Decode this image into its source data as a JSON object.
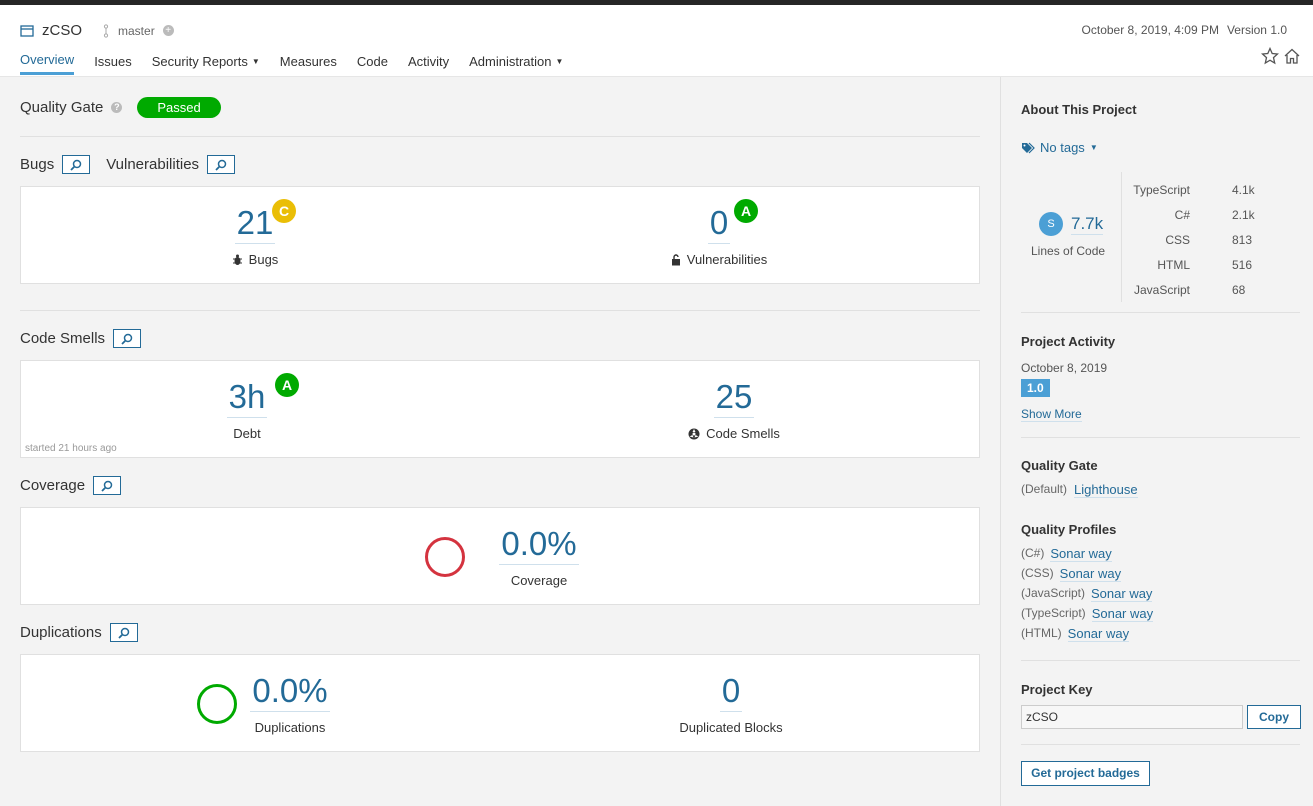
{
  "header": {
    "project_name": "zCSO",
    "branch": "master",
    "date": "October 8, 2019, 4:09 PM",
    "version": "Version 1.0",
    "nav": [
      {
        "label": "Overview"
      },
      {
        "label": "Issues"
      },
      {
        "label": "Security Reports"
      },
      {
        "label": "Measures"
      },
      {
        "label": "Code"
      },
      {
        "label": "Activity"
      },
      {
        "label": "Administration"
      }
    ]
  },
  "quality_gate": {
    "title": "Quality Gate",
    "status": "Passed",
    "status_color": "#00aa00"
  },
  "bugs_vulns": {
    "bugs_title": "Bugs",
    "vulns_title": "Vulnerabilities",
    "bugs_value": "21",
    "bugs_rating": "C",
    "bugs_label": "Bugs",
    "vulns_value": "0",
    "vulns_rating": "A",
    "vulns_label": "Vulnerabilities"
  },
  "code_smells": {
    "title": "Code Smells",
    "debt_value": "3h",
    "debt_rating": "A",
    "debt_label": "Debt",
    "smells_value": "25",
    "smells_label": "Code Smells",
    "started": "started 21 hours ago"
  },
  "coverage": {
    "title": "Coverage",
    "value": "0.0%",
    "label": "Coverage",
    "color": "#d4333f"
  },
  "duplications": {
    "title": "Duplications",
    "value": "0.0%",
    "label": "Duplications",
    "color": "#00aa00",
    "blocks_value": "0",
    "blocks_label": "Duplicated Blocks"
  },
  "sidebar": {
    "about_title": "About This Project",
    "tags": "No tags",
    "loc_icon": "S",
    "loc_value": "7.7k",
    "loc_label": "Lines of Code",
    "languages": [
      {
        "name": "TypeScript",
        "value": "4.1k",
        "fraction": 1.0
      },
      {
        "name": "C#",
        "value": "2.1k",
        "fraction": 0.51
      },
      {
        "name": "CSS",
        "value": "813",
        "fraction": 0.2
      },
      {
        "name": "HTML",
        "value": "516",
        "fraction": 0.13
      },
      {
        "name": "JavaScript",
        "value": "68",
        "fraction": 0.02
      }
    ],
    "activity_title": "Project Activity",
    "activity_date": "October 8, 2019",
    "activity_version": "1.0",
    "show_more": "Show More",
    "qg_title": "Quality Gate",
    "qg_default": "(Default)",
    "qg_link": "Lighthouse",
    "profiles_title": "Quality Profiles",
    "profiles": [
      {
        "lang": "(C#)",
        "name": "Sonar way"
      },
      {
        "lang": "(CSS)",
        "name": "Sonar way"
      },
      {
        "lang": "(JavaScript)",
        "name": "Sonar way"
      },
      {
        "lang": "(TypeScript)",
        "name": "Sonar way"
      },
      {
        "lang": "(HTML)",
        "name": "Sonar way"
      }
    ],
    "key_title": "Project Key",
    "key_value": "zCSO",
    "copy_label": "Copy",
    "badges_label": "Get project badges"
  }
}
